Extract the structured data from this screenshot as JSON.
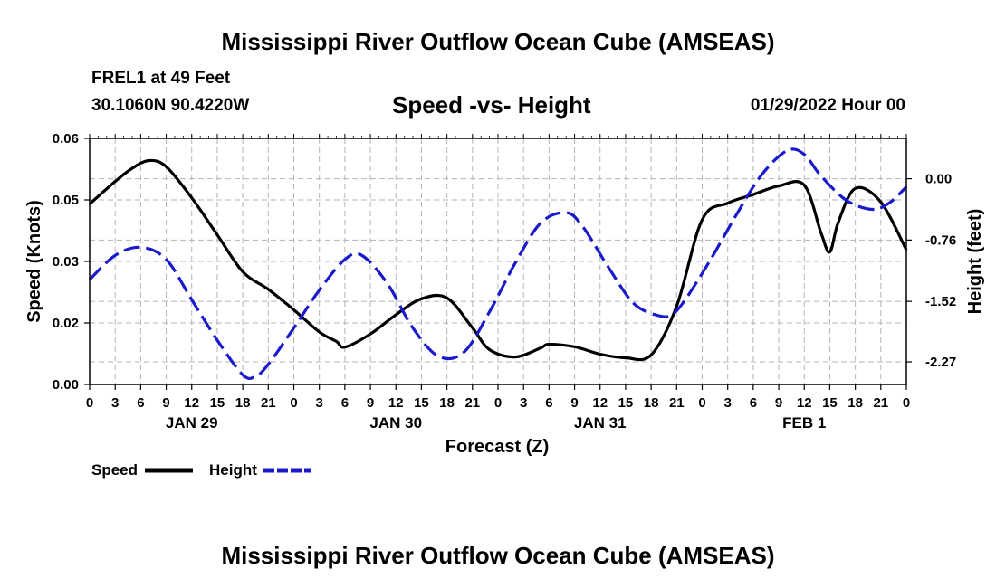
{
  "header": {
    "title": "Mississippi River Outflow Ocean Cube (AMSEAS)",
    "station": "FREL1 at 49 Feet",
    "coords": "30.1060N  90.4220W",
    "subtitle": "Speed -vs- Height",
    "run_time": "01/29/2022 Hour 00"
  },
  "footer": {
    "title": "Mississippi River Outflow Ocean Cube (AMSEAS)"
  },
  "legend": {
    "speed": "Speed",
    "height": "Height"
  },
  "colors": {
    "speed": "#000000",
    "height": "#1a1acc",
    "grid": "#b4b4b4"
  },
  "chart_data": {
    "type": "line",
    "title": "Speed -vs- Height",
    "xlabel": "Forecast (Z)",
    "ylabel": "Speed (Knots)",
    "ylabel_right": "Height (feet)",
    "x_range_hours": [
      0,
      96
    ],
    "x_tick_step_hours": 3,
    "x_tick_labels": [
      "0",
      "3",
      "6",
      "9",
      "12",
      "15",
      "18",
      "21",
      "0",
      "3",
      "6",
      "9",
      "12",
      "15",
      "18",
      "21",
      "0",
      "3",
      "6",
      "9",
      "12",
      "15",
      "18",
      "21",
      "0",
      "3",
      "6",
      "9",
      "12",
      "15",
      "18",
      "21",
      "0"
    ],
    "date_labels": [
      {
        "hour": 12,
        "label": "JAN 29"
      },
      {
        "hour": 36,
        "label": "JAN 30"
      },
      {
        "hour": 60,
        "label": "JAN 31"
      },
      {
        "hour": 84,
        "label": "FEB 1"
      }
    ],
    "ylim_left": [
      0,
      0.06
    ],
    "y_ticks_left": [
      {
        "value": 0.0,
        "label": "0.00"
      },
      {
        "value": 0.015,
        "label": "0.02"
      },
      {
        "value": 0.03,
        "label": "0.03"
      },
      {
        "value": 0.045,
        "label": "0.05"
      },
      {
        "value": 0.06,
        "label": "0.06"
      }
    ],
    "ylim_right": [
      -2.55,
      0.5
    ],
    "y_ticks_right": [
      {
        "value": 0.0,
        "label": "0.00"
      },
      {
        "value": -0.76,
        "label": "-0.76"
      },
      {
        "value": -1.52,
        "label": "-1.52"
      },
      {
        "value": -2.27,
        "label": "-2.27"
      }
    ],
    "series": [
      {
        "name": "Speed",
        "axis": "left",
        "style": "solid",
        "x": [
          0,
          3,
          5,
          7,
          9,
          12,
          15,
          18,
          21,
          24,
          27,
          29,
          30,
          33,
          36,
          39,
          42,
          45,
          47,
          50,
          53,
          54,
          57,
          60,
          63,
          66,
          69,
          72,
          75,
          78,
          81,
          84,
          86,
          87,
          88,
          90,
          93,
          96
        ],
        "y": [
          0.044,
          0.0495,
          0.0527,
          0.0546,
          0.0531,
          0.0455,
          0.0365,
          0.0275,
          0.0232,
          0.0182,
          0.0128,
          0.0105,
          0.0091,
          0.0123,
          0.017,
          0.0209,
          0.0211,
          0.0138,
          0.0085,
          0.0067,
          0.0089,
          0.0098,
          0.0092,
          0.0074,
          0.0065,
          0.0072,
          0.0191,
          0.0402,
          0.0442,
          0.0463,
          0.0484,
          0.0486,
          0.0368,
          0.0323,
          0.0395,
          0.0478,
          0.0445,
          0.0328
        ]
      },
      {
        "name": "Height",
        "axis": "right",
        "style": "dashed",
        "x": [
          0,
          3,
          6,
          9,
          12,
          15,
          18,
          19.5,
          21,
          24,
          27,
          30,
          32,
          35,
          38,
          41,
          44,
          47,
          50,
          53,
          56,
          58,
          61,
          64,
          67,
          68.5,
          70,
          73,
          76,
          79,
          82,
          84,
          86,
          89,
          92,
          94,
          96
        ],
        "y": [
          -1.25,
          -0.95,
          -0.85,
          -1.0,
          -1.5,
          -2.0,
          -2.43,
          -2.45,
          -2.3,
          -1.85,
          -1.38,
          -1.0,
          -0.95,
          -1.3,
          -1.85,
          -2.2,
          -2.15,
          -1.65,
          -1.05,
          -0.55,
          -0.42,
          -0.6,
          -1.1,
          -1.55,
          -1.7,
          -1.68,
          -1.5,
          -1.0,
          -0.45,
          0.05,
          0.35,
          0.3,
          0.03,
          -0.27,
          -0.38,
          -0.3,
          -0.1
        ]
      }
    ],
    "legend_position": "bottom-left"
  }
}
